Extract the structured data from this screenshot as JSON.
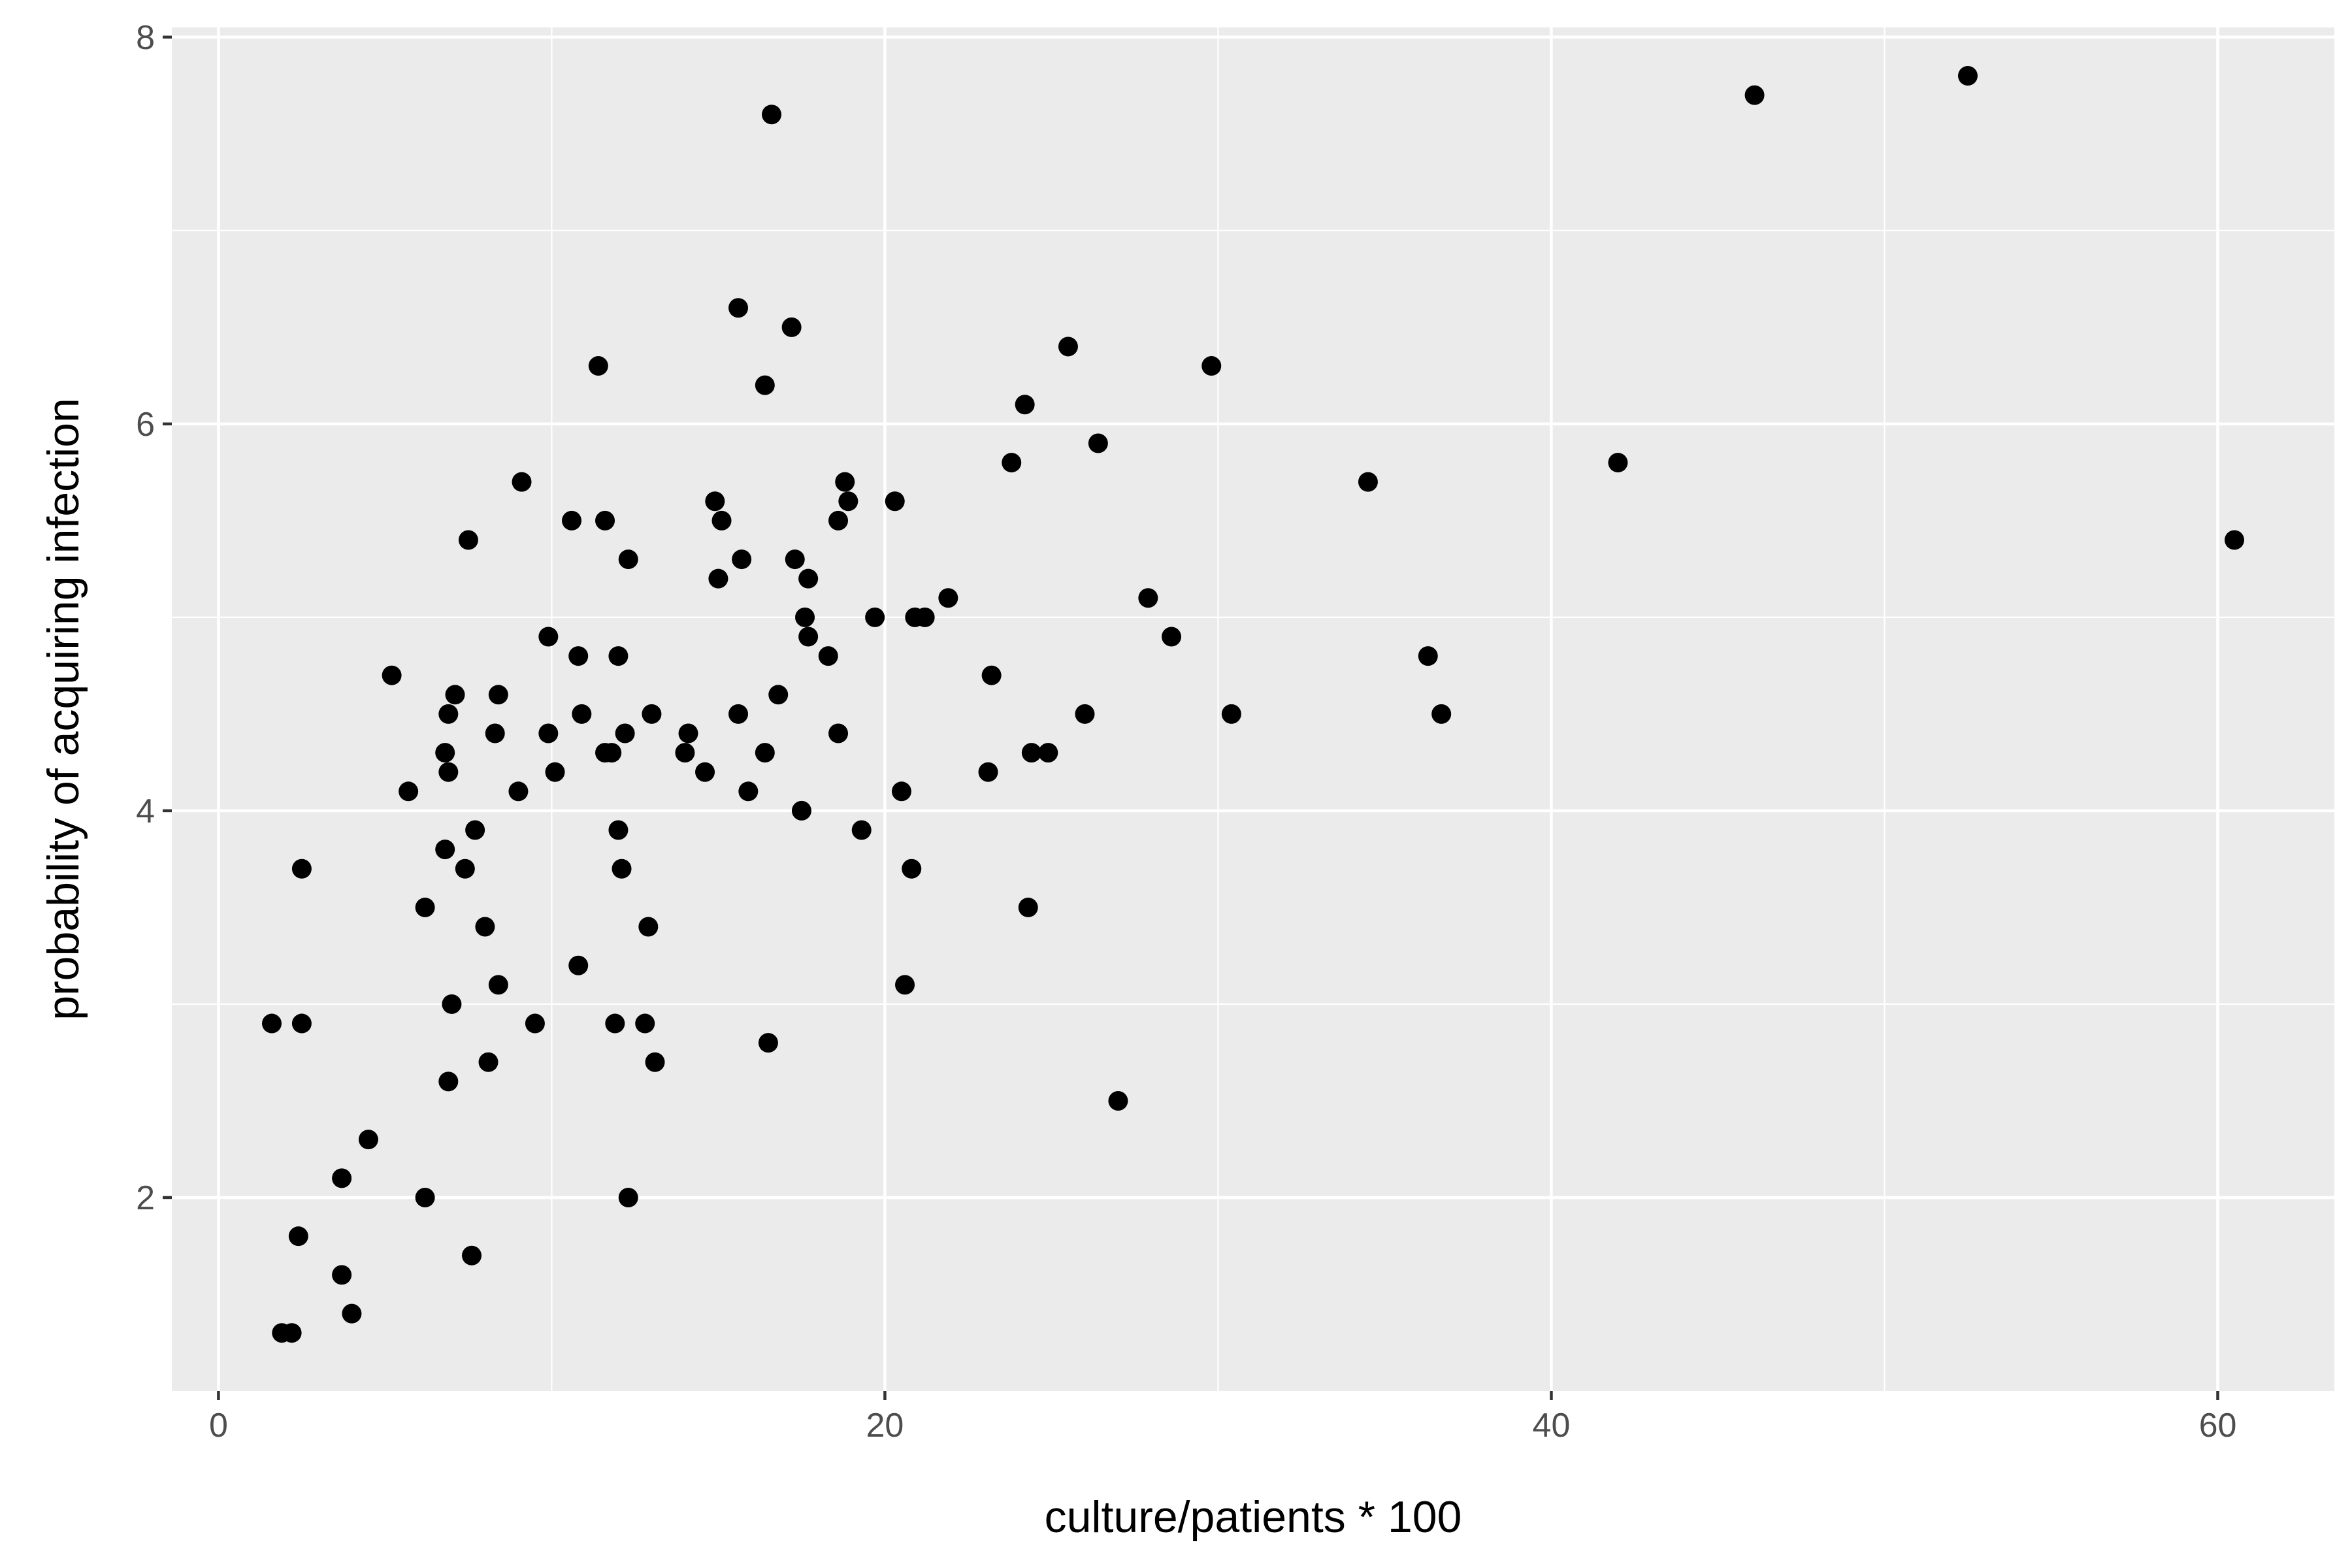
{
  "chart_data": {
    "type": "scatter",
    "title": "",
    "xlabel": "culture/patients * 100",
    "ylabel": "probability of acquiring infection",
    "xlim": [
      -1.4,
      63.5
    ],
    "ylim": [
      1.0,
      8.05
    ],
    "x_ticks": [
      0,
      20,
      40,
      60
    ],
    "x_tick_labels": [
      "0",
      "20",
      "40",
      "60"
    ],
    "y_ticks": [
      2,
      4,
      6,
      8
    ],
    "y_tick_labels": [
      "2",
      "4",
      "6",
      "8"
    ],
    "x_minor": [
      10,
      30,
      50
    ],
    "y_minor": [
      3,
      5,
      7
    ],
    "grid": true,
    "legend": "none",
    "colors": {
      "panel": "#ebebeb",
      "grid": "#ffffff",
      "point": "#000000",
      "tick_text": "#4d4d4d"
    },
    "points": [
      {
        "x": 1.6,
        "y": 2.9
      },
      {
        "x": 1.9,
        "y": 1.3
      },
      {
        "x": 2.2,
        "y": 1.3
      },
      {
        "x": 2.4,
        "y": 1.8
      },
      {
        "x": 2.5,
        "y": 2.9
      },
      {
        "x": 2.5,
        "y": 3.7
      },
      {
        "x": 3.7,
        "y": 2.1
      },
      {
        "x": 3.7,
        "y": 1.6
      },
      {
        "x": 4.0,
        "y": 1.4
      },
      {
        "x": 4.5,
        "y": 2.3
      },
      {
        "x": 5.2,
        "y": 4.7
      },
      {
        "x": 5.7,
        "y": 4.1
      },
      {
        "x": 6.2,
        "y": 3.5
      },
      {
        "x": 6.2,
        "y": 2.0
      },
      {
        "x": 6.8,
        "y": 4.3
      },
      {
        "x": 6.8,
        "y": 3.8
      },
      {
        "x": 6.9,
        "y": 4.5
      },
      {
        "x": 6.9,
        "y": 4.2
      },
      {
        "x": 6.9,
        "y": 2.6
      },
      {
        "x": 7.0,
        "y": 3.0
      },
      {
        "x": 7.1,
        "y": 4.6
      },
      {
        "x": 7.4,
        "y": 3.7
      },
      {
        "x": 7.5,
        "y": 5.4
      },
      {
        "x": 7.6,
        "y": 1.7
      },
      {
        "x": 7.7,
        "y": 3.9
      },
      {
        "x": 8.0,
        "y": 3.4
      },
      {
        "x": 8.1,
        "y": 2.7
      },
      {
        "x": 8.3,
        "y": 4.4
      },
      {
        "x": 8.4,
        "y": 4.6
      },
      {
        "x": 8.4,
        "y": 3.1
      },
      {
        "x": 9.0,
        "y": 4.1
      },
      {
        "x": 9.1,
        "y": 5.7
      },
      {
        "x": 9.5,
        "y": 2.9
      },
      {
        "x": 9.9,
        "y": 4.9
      },
      {
        "x": 9.9,
        "y": 4.4
      },
      {
        "x": 10.1,
        "y": 4.2
      },
      {
        "x": 10.6,
        "y": 5.5
      },
      {
        "x": 10.8,
        "y": 4.8
      },
      {
        "x": 10.8,
        "y": 3.2
      },
      {
        "x": 10.9,
        "y": 4.5
      },
      {
        "x": 11.4,
        "y": 6.3
      },
      {
        "x": 11.6,
        "y": 5.5
      },
      {
        "x": 11.6,
        "y": 4.3
      },
      {
        "x": 11.8,
        "y": 4.3
      },
      {
        "x": 11.9,
        "y": 2.9
      },
      {
        "x": 12.0,
        "y": 4.8
      },
      {
        "x": 12.0,
        "y": 3.9
      },
      {
        "x": 12.1,
        "y": 3.7
      },
      {
        "x": 12.2,
        "y": 4.4
      },
      {
        "x": 12.3,
        "y": 5.3
      },
      {
        "x": 12.3,
        "y": 2.0
      },
      {
        "x": 12.8,
        "y": 2.9
      },
      {
        "x": 12.9,
        "y": 3.4
      },
      {
        "x": 13.0,
        "y": 4.5
      },
      {
        "x": 13.1,
        "y": 2.7
      },
      {
        "x": 14.0,
        "y": 4.3
      },
      {
        "x": 14.1,
        "y": 4.4
      },
      {
        "x": 14.6,
        "y": 4.2
      },
      {
        "x": 14.9,
        "y": 5.6
      },
      {
        "x": 15.0,
        "y": 5.2
      },
      {
        "x": 15.1,
        "y": 5.5
      },
      {
        "x": 15.6,
        "y": 6.6
      },
      {
        "x": 15.6,
        "y": 4.5
      },
      {
        "x": 15.7,
        "y": 5.3
      },
      {
        "x": 15.9,
        "y": 4.1
      },
      {
        "x": 16.4,
        "y": 6.2
      },
      {
        "x": 16.4,
        "y": 4.3
      },
      {
        "x": 16.5,
        "y": 2.8
      },
      {
        "x": 16.6,
        "y": 7.6
      },
      {
        "x": 16.8,
        "y": 4.6
      },
      {
        "x": 17.2,
        "y": 6.5
      },
      {
        "x": 17.3,
        "y": 5.3
      },
      {
        "x": 17.5,
        "y": 4.0
      },
      {
        "x": 17.6,
        "y": 5.0
      },
      {
        "x": 17.7,
        "y": 5.2
      },
      {
        "x": 17.7,
        "y": 4.9
      },
      {
        "x": 18.3,
        "y": 4.8
      },
      {
        "x": 18.6,
        "y": 5.5
      },
      {
        "x": 18.6,
        "y": 4.4
      },
      {
        "x": 18.8,
        "y": 5.7
      },
      {
        "x": 18.9,
        "y": 5.6
      },
      {
        "x": 19.3,
        "y": 3.9
      },
      {
        "x": 19.7,
        "y": 5.0
      },
      {
        "x": 20.3,
        "y": 5.6
      },
      {
        "x": 20.5,
        "y": 4.1
      },
      {
        "x": 20.6,
        "y": 3.1
      },
      {
        "x": 20.8,
        "y": 3.7
      },
      {
        "x": 20.9,
        "y": 5.0
      },
      {
        "x": 21.2,
        "y": 5.0
      },
      {
        "x": 21.9,
        "y": 5.1
      },
      {
        "x": 23.1,
        "y": 4.2
      },
      {
        "x": 23.2,
        "y": 4.7
      },
      {
        "x": 23.8,
        "y": 5.8
      },
      {
        "x": 24.2,
        "y": 6.1
      },
      {
        "x": 24.3,
        "y": 3.5
      },
      {
        "x": 24.4,
        "y": 4.3
      },
      {
        "x": 24.9,
        "y": 4.3
      },
      {
        "x": 25.5,
        "y": 6.4
      },
      {
        "x": 26.0,
        "y": 4.5
      },
      {
        "x": 26.4,
        "y": 5.9
      },
      {
        "x": 27.0,
        "y": 2.5
      },
      {
        "x": 27.9,
        "y": 5.1
      },
      {
        "x": 28.6,
        "y": 4.9
      },
      {
        "x": 29.8,
        "y": 6.3
      },
      {
        "x": 30.4,
        "y": 4.5
      },
      {
        "x": 34.5,
        "y": 5.7
      },
      {
        "x": 36.3,
        "y": 4.8
      },
      {
        "x": 36.7,
        "y": 4.5
      },
      {
        "x": 42.0,
        "y": 5.8
      },
      {
        "x": 46.1,
        "y": 7.7
      },
      {
        "x": 52.5,
        "y": 7.8
      },
      {
        "x": 60.5,
        "y": 5.4
      }
    ]
  }
}
